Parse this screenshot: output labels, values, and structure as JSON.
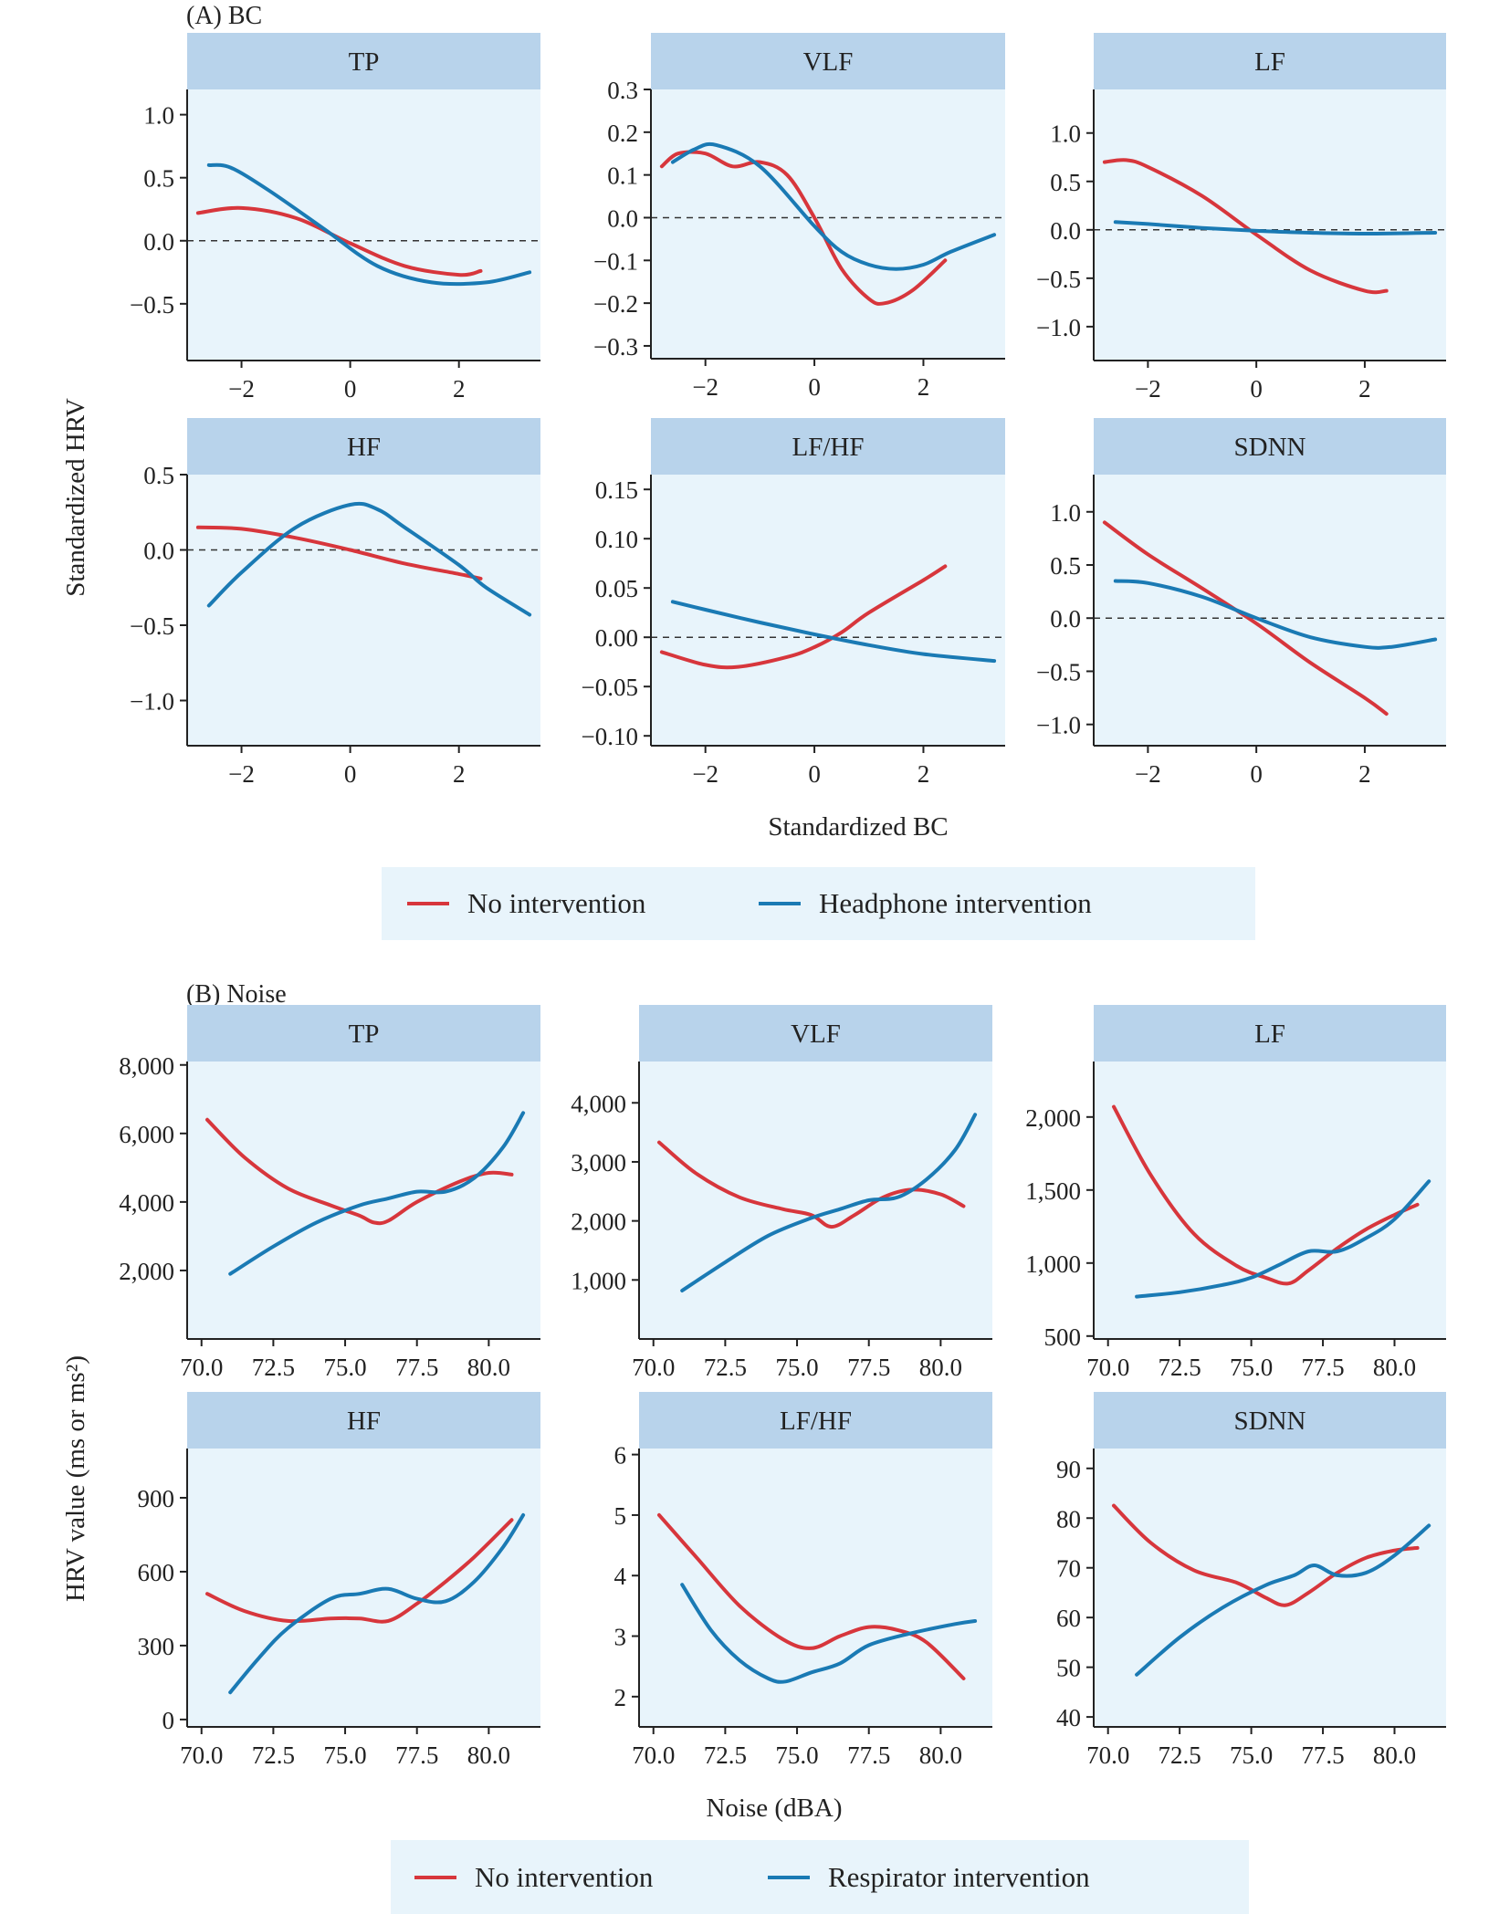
{
  "sections": [
    {
      "label": "(A) BC",
      "ylabel": "Standardized HRV",
      "xlabel": "Standardized BC",
      "legend": [
        {
          "name": "No intervention",
          "color": "#d7363c"
        },
        {
          "name": "Headphone intervention",
          "color": "#1a7ab4"
        }
      ]
    },
    {
      "label": "(B) Noise",
      "ylabel": "HRV value (ms or ms²)",
      "xlabel": "Noise (dBA)",
      "legend": [
        {
          "name": "No intervention",
          "color": "#d7363c"
        },
        {
          "name": "Respirator intervention",
          "color": "#1a7ab4"
        }
      ]
    }
  ],
  "colors": {
    "no_intervention": "#d7363c",
    "intervention": "#1a7ab4",
    "panel_bg": "#e8f4fb",
    "strip_bg": "#b8d3eb"
  },
  "chart_data": [
    {
      "type": "line",
      "title": "TP",
      "section": 0,
      "xlim": [
        -3,
        3.5
      ],
      "ylim": [
        -0.95,
        1.2
      ],
      "xticks": [
        -2,
        0,
        2
      ],
      "xtick_labels": [
        "−2",
        "0",
        "2"
      ],
      "yticks": [
        1.0,
        0.5,
        0.0,
        -0.5
      ],
      "ytick_labels": [
        "1.0",
        "0.5",
        "0.0",
        "−0.5"
      ],
      "refline": 0,
      "series": [
        {
          "name": "No intervention",
          "x": [
            -2.8,
            -2.0,
            -1.0,
            0.0,
            1.0,
            2.0,
            2.4
          ],
          "y": [
            0.22,
            0.26,
            0.18,
            -0.02,
            -0.2,
            -0.27,
            -0.24
          ]
        },
        {
          "name": "Headphone intervention",
          "x": [
            -2.6,
            -2.2,
            -1.5,
            -0.5,
            0.5,
            1.5,
            2.5,
            3.3
          ],
          "y": [
            0.6,
            0.58,
            0.4,
            0.1,
            -0.2,
            -0.33,
            -0.33,
            -0.25
          ]
        }
      ]
    },
    {
      "type": "line",
      "title": "VLF",
      "section": 0,
      "xlim": [
        -3,
        3.5
      ],
      "ylim": [
        -0.33,
        0.3
      ],
      "xticks": [
        -2,
        0,
        2
      ],
      "xtick_labels": [
        "−2",
        "0",
        "2"
      ],
      "yticks": [
        0.3,
        0.2,
        0.1,
        0.0,
        -0.1,
        -0.2,
        -0.3
      ],
      "ytick_labels": [
        "0.3",
        "0.2",
        "0.1",
        "0.0",
        "−0.1",
        "−0.2",
        "−0.3"
      ],
      "refline": 0,
      "series": [
        {
          "name": "No intervention",
          "x": [
            -2.8,
            -2.5,
            -2.0,
            -1.5,
            -1.0,
            -0.5,
            0.0,
            0.5,
            1.0,
            1.3,
            1.8,
            2.4
          ],
          "y": [
            0.12,
            0.15,
            0.15,
            0.12,
            0.13,
            0.1,
            0.0,
            -0.12,
            -0.19,
            -0.2,
            -0.17,
            -0.1
          ]
        },
        {
          "name": "Headphone intervention",
          "x": [
            -2.6,
            -2.2,
            -1.8,
            -1.0,
            0.0,
            0.5,
            1.0,
            1.5,
            2.0,
            2.5,
            3.3
          ],
          "y": [
            0.13,
            0.16,
            0.17,
            0.12,
            -0.02,
            -0.08,
            -0.11,
            -0.12,
            -0.11,
            -0.08,
            -0.04
          ]
        }
      ]
    },
    {
      "type": "line",
      "title": "LF",
      "section": 0,
      "xlim": [
        -3,
        3.5
      ],
      "ylim": [
        -1.35,
        1.45
      ],
      "xticks": [
        -2,
        0,
        2
      ],
      "xtick_labels": [
        "−2",
        "0",
        "2"
      ],
      "yticks": [
        1.0,
        0.5,
        0.0,
        -0.5,
        -1.0
      ],
      "ytick_labels": [
        "1.0",
        "0.5",
        "0.0",
        "−0.5",
        "−1.0"
      ],
      "refline": 0,
      "series": [
        {
          "name": "No intervention",
          "x": [
            -2.8,
            -2.4,
            -2.0,
            -1.0,
            0.0,
            1.0,
            2.0,
            2.4
          ],
          "y": [
            0.7,
            0.72,
            0.65,
            0.35,
            -0.05,
            -0.42,
            -0.63,
            -0.63
          ]
        },
        {
          "name": "Headphone intervention",
          "x": [
            -2.6,
            -2.0,
            -1.0,
            0.0,
            1.0,
            2.0,
            3.3
          ],
          "y": [
            0.08,
            0.06,
            0.02,
            -0.01,
            -0.03,
            -0.04,
            -0.03
          ]
        }
      ]
    },
    {
      "type": "line",
      "title": "HF",
      "section": 0,
      "xlim": [
        -3,
        3.5
      ],
      "ylim": [
        -1.3,
        0.5
      ],
      "xticks": [
        -2,
        0,
        2
      ],
      "xtick_labels": [
        "−2",
        "0",
        "2"
      ],
      "yticks": [
        0.5,
        0.0,
        -0.5,
        -1.0
      ],
      "ytick_labels": [
        "0.5",
        "0.0",
        "−0.5",
        "−1.0"
      ],
      "refline": 0,
      "series": [
        {
          "name": "No intervention",
          "x": [
            -2.8,
            -2.0,
            -1.0,
            0.0,
            1.0,
            2.0,
            2.4
          ],
          "y": [
            0.15,
            0.14,
            0.08,
            0.0,
            -0.09,
            -0.16,
            -0.19
          ]
        },
        {
          "name": "Headphone intervention",
          "x": [
            -2.6,
            -2.0,
            -1.0,
            0.0,
            0.5,
            1.0,
            2.0,
            2.5,
            3.3
          ],
          "y": [
            -0.37,
            -0.15,
            0.15,
            0.3,
            0.27,
            0.15,
            -0.1,
            -0.25,
            -0.43
          ]
        }
      ]
    },
    {
      "type": "line",
      "title": "LF/HF",
      "section": 0,
      "xlim": [
        -3,
        3.5
      ],
      "ylim": [
        -0.11,
        0.165
      ],
      "xticks": [
        -2,
        0,
        2
      ],
      "xtick_labels": [
        "−2",
        "0",
        "2"
      ],
      "yticks": [
        0.15,
        0.1,
        0.05,
        0.0,
        -0.05,
        -0.1
      ],
      "ytick_labels": [
        "0.15",
        "0.10",
        "0.05",
        "0.00",
        "−0.05",
        "−0.10"
      ],
      "refline": 0,
      "series": [
        {
          "name": "No intervention",
          "x": [
            -2.8,
            -2.0,
            -1.4,
            -0.5,
            0.0,
            0.5,
            1.0,
            2.0,
            2.4
          ],
          "y": [
            -0.015,
            -0.028,
            -0.03,
            -0.02,
            -0.01,
            0.005,
            0.025,
            0.058,
            0.072
          ]
        },
        {
          "name": "Headphone intervention",
          "x": [
            -2.6,
            -2.0,
            -1.0,
            0.0,
            1.0,
            2.0,
            3.3
          ],
          "y": [
            0.036,
            0.028,
            0.015,
            0.003,
            -0.008,
            -0.017,
            -0.024
          ]
        }
      ]
    },
    {
      "type": "line",
      "title": "SDNN",
      "section": 0,
      "xlim": [
        -3,
        3.5
      ],
      "ylim": [
        -1.2,
        1.35
      ],
      "xticks": [
        -2,
        0,
        2
      ],
      "xtick_labels": [
        "−2",
        "0",
        "2"
      ],
      "yticks": [
        1.0,
        0.5,
        0.0,
        -0.5,
        -1.0
      ],
      "ytick_labels": [
        "1.0",
        "0.5",
        "0.0",
        "−0.5",
        "−1.0"
      ],
      "refline": 0,
      "series": [
        {
          "name": "No intervention",
          "x": [
            -2.8,
            -2.0,
            -1.0,
            0.0,
            1.0,
            2.0,
            2.4
          ],
          "y": [
            0.9,
            0.6,
            0.28,
            -0.05,
            -0.42,
            -0.75,
            -0.9
          ]
        },
        {
          "name": "Headphone intervention",
          "x": [
            -2.6,
            -2.0,
            -1.0,
            0.0,
            1.0,
            2.0,
            2.5,
            3.3
          ],
          "y": [
            0.35,
            0.33,
            0.2,
            0.0,
            -0.18,
            -0.27,
            -0.27,
            -0.2
          ]
        }
      ]
    },
    {
      "type": "line",
      "title": "TP",
      "section": 1,
      "xlim": [
        69.5,
        81.8
      ],
      "ylim": [
        0,
        8100
      ],
      "xticks": [
        70.0,
        72.5,
        75.0,
        77.5,
        80.0
      ],
      "xtick_labels": [
        "70.0",
        "72.5",
        "75.0",
        "77.5",
        "80.0"
      ],
      "yticks": [
        8000,
        6000,
        4000,
        2000
      ],
      "ytick_labels": [
        "8,000",
        "6,000",
        "4,000",
        "2,000"
      ],
      "series": [
        {
          "name": "No intervention",
          "x": [
            70.2,
            71.5,
            73.0,
            74.5,
            75.5,
            76.0,
            76.5,
            77.5,
            79.0,
            80.0,
            80.8
          ],
          "y": [
            6400,
            5300,
            4400,
            3900,
            3600,
            3400,
            3450,
            4000,
            4600,
            4850,
            4800
          ]
        },
        {
          "name": "Respirator intervention",
          "x": [
            71.0,
            72.5,
            74.0,
            75.5,
            76.5,
            77.5,
            78.5,
            79.5,
            80.5,
            81.2
          ],
          "y": [
            1900,
            2700,
            3400,
            3900,
            4100,
            4300,
            4300,
            4700,
            5600,
            6600
          ]
        }
      ]
    },
    {
      "type": "line",
      "title": "VLF",
      "section": 1,
      "xlim": [
        69.5,
        81.8
      ],
      "ylim": [
        0,
        4700
      ],
      "xticks": [
        70.0,
        72.5,
        75.0,
        77.5,
        80.0
      ],
      "xtick_labels": [
        "70.0",
        "72.5",
        "75.0",
        "77.5",
        "80.0"
      ],
      "yticks": [
        4000,
        3000,
        2000,
        1000
      ],
      "ytick_labels": [
        "4,000",
        "3,000",
        "2,000",
        "1,000"
      ],
      "series": [
        {
          "name": "No intervention",
          "x": [
            70.2,
            71.5,
            73.0,
            74.5,
            75.5,
            76.2,
            77.0,
            78.0,
            79.0,
            80.0,
            80.8
          ],
          "y": [
            3330,
            2800,
            2400,
            2200,
            2100,
            1900,
            2100,
            2400,
            2530,
            2450,
            2250
          ]
        },
        {
          "name": "Respirator intervention",
          "x": [
            71.0,
            72.5,
            74.0,
            75.5,
            76.5,
            77.5,
            78.5,
            79.5,
            80.5,
            81.2
          ],
          "y": [
            820,
            1300,
            1750,
            2050,
            2200,
            2350,
            2400,
            2700,
            3200,
            3800
          ]
        }
      ]
    },
    {
      "type": "line",
      "title": "LF",
      "section": 1,
      "xlim": [
        69.5,
        81.8
      ],
      "ylim": [
        480,
        2380
      ],
      "xticks": [
        70.0,
        72.5,
        75.0,
        77.5,
        80.0
      ],
      "xtick_labels": [
        "70.0",
        "72.5",
        "75.0",
        "77.5",
        "80.0"
      ],
      "yticks": [
        2000,
        1500,
        1000,
        500
      ],
      "ytick_labels": [
        "2,000",
        "1,500",
        "1,000",
        "500"
      ],
      "series": [
        {
          "name": "No intervention",
          "x": [
            70.2,
            71.5,
            73.0,
            74.5,
            75.5,
            76.3,
            77.0,
            78.0,
            79.0,
            80.0,
            80.8
          ],
          "y": [
            2070,
            1600,
            1200,
            980,
            900,
            860,
            950,
            1100,
            1230,
            1330,
            1400
          ]
        },
        {
          "name": "Respirator intervention",
          "x": [
            71.0,
            72.5,
            74.0,
            75.0,
            76.0,
            77.0,
            78.0,
            79.0,
            80.0,
            81.2
          ],
          "y": [
            770,
            800,
            850,
            900,
            990,
            1080,
            1080,
            1170,
            1300,
            1560
          ]
        }
      ]
    },
    {
      "type": "line",
      "title": "HF",
      "section": 1,
      "xlim": [
        69.5,
        81.8
      ],
      "ylim": [
        -30,
        1100
      ],
      "xticks": [
        70.0,
        72.5,
        75.0,
        77.5,
        80.0
      ],
      "xtick_labels": [
        "70.0",
        "72.5",
        "75.0",
        "77.5",
        "80.0"
      ],
      "yticks": [
        900,
        600,
        300,
        0
      ],
      "ytick_labels": [
        "900",
        "600",
        "300",
        "0"
      ],
      "series": [
        {
          "name": "No intervention",
          "x": [
            70.2,
            71.5,
            73.0,
            74.5,
            75.5,
            76.5,
            77.5,
            78.5,
            79.5,
            80.8
          ],
          "y": [
            510,
            440,
            400,
            410,
            410,
            400,
            470,
            560,
            660,
            810
          ]
        },
        {
          "name": "Respirator intervention",
          "x": [
            71.0,
            72.0,
            73.0,
            74.5,
            75.5,
            76.5,
            77.5,
            78.5,
            79.5,
            80.5,
            81.2
          ],
          "y": [
            110,
            250,
            370,
            490,
            510,
            530,
            490,
            480,
            560,
            700,
            830
          ]
        }
      ]
    },
    {
      "type": "line",
      "title": "LF/HF",
      "section": 1,
      "xlim": [
        69.5,
        81.8
      ],
      "ylim": [
        1.5,
        6.1
      ],
      "xticks": [
        70.0,
        72.5,
        75.0,
        77.5,
        80.0
      ],
      "xtick_labels": [
        "70.0",
        "72.5",
        "75.0",
        "77.5",
        "80.0"
      ],
      "yticks": [
        6,
        5,
        4,
        3,
        2
      ],
      "ytick_labels": [
        "6",
        "5",
        "4",
        "3",
        "2"
      ],
      "series": [
        {
          "name": "No intervention",
          "x": [
            70.2,
            71.5,
            73.0,
            74.5,
            75.5,
            76.5,
            77.5,
            78.5,
            79.5,
            80.8
          ],
          "y": [
            5.0,
            4.3,
            3.5,
            2.95,
            2.8,
            3.0,
            3.15,
            3.1,
            2.9,
            2.3
          ]
        },
        {
          "name": "Respirator intervention",
          "x": [
            71.0,
            72.0,
            73.0,
            74.0,
            74.6,
            75.5,
            76.5,
            77.5,
            79.0,
            80.5,
            81.2
          ],
          "y": [
            3.85,
            3.1,
            2.6,
            2.3,
            2.25,
            2.4,
            2.55,
            2.85,
            3.05,
            3.2,
            3.25
          ]
        }
      ]
    },
    {
      "type": "line",
      "title": "SDNN",
      "section": 1,
      "xlim": [
        69.5,
        81.8
      ],
      "ylim": [
        38,
        94
      ],
      "xticks": [
        70.0,
        72.5,
        75.0,
        77.5,
        80.0
      ],
      "xtick_labels": [
        "70.0",
        "72.5",
        "75.0",
        "77.5",
        "80.0"
      ],
      "yticks": [
        90,
        80,
        70,
        60,
        50,
        40
      ],
      "ytick_labels": [
        "90",
        "80",
        "70",
        "60",
        "50",
        "40"
      ],
      "series": [
        {
          "name": "No intervention",
          "x": [
            70.2,
            71.5,
            73.0,
            74.5,
            75.5,
            76.2,
            77.0,
            78.0,
            79.0,
            80.0,
            80.8
          ],
          "y": [
            82.5,
            75.0,
            69.5,
            67.0,
            64.0,
            62.5,
            65.0,
            69.0,
            72.0,
            73.5,
            74.0
          ]
        },
        {
          "name": "Respirator intervention",
          "x": [
            71.0,
            72.5,
            74.0,
            75.5,
            76.5,
            77.2,
            78.0,
            79.0,
            80.0,
            81.2
          ],
          "y": [
            48.5,
            56.0,
            62.0,
            66.5,
            68.5,
            70.5,
            68.5,
            69.0,
            72.5,
            78.5
          ]
        }
      ]
    }
  ]
}
